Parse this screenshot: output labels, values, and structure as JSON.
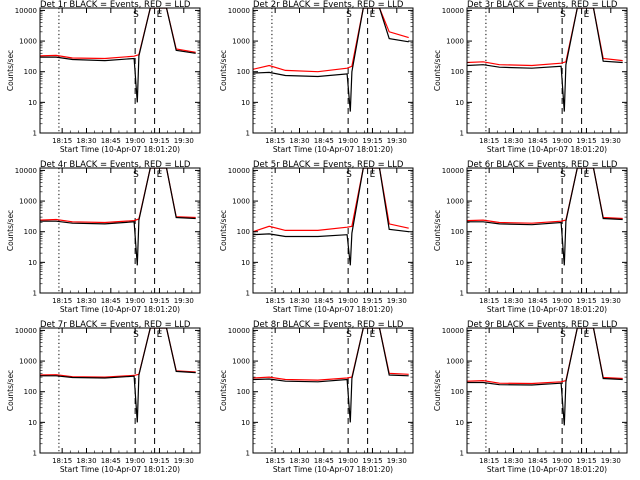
{
  "window": {
    "title_suffix": "BLACK = Events, RED = LLD"
  },
  "legend": {
    "black": "BLACK = Events",
    "red": "RED = LLD",
    "colors": {
      "events": "#000000",
      "lld": "#ff0000"
    }
  },
  "markers": {
    "start": "S",
    "end": "E"
  },
  "axes": {
    "xlabel": "Start Time (10-Apr-07 18:01:20)",
    "ylabel": "Counts/sec",
    "xticks": [
      "18:15",
      "18:30",
      "18:45",
      "19:00",
      "19:15",
      "19:30"
    ],
    "yticks": [
      "1",
      "10",
      "100",
      "1000",
      "10000"
    ]
  },
  "chart_data": [
    {
      "type": "line",
      "title": "Det 1r BLACK = Events, RED = LLD",
      "xlabel": "Start Time (10-Apr-07 18:01:20)",
      "ylabel": "Counts/sec",
      "xlim": [
        "18:01:20",
        "19:40"
      ],
      "ylim": [
        1,
        12000
      ],
      "yscale": "log",
      "series": [
        {
          "name": "Events",
          "color": "#000000",
          "values": [
            [
              0,
              300
            ],
            [
              10,
              300
            ],
            [
              20,
              250
            ],
            [
              40,
              230
            ],
            [
              58,
              270
            ],
            [
              60,
              10
            ],
            [
              61,
              330
            ],
            [
              68,
              12000
            ],
            [
              78,
              12000
            ],
            [
              84,
              500
            ],
            [
              96,
              400
            ]
          ]
        },
        {
          "name": "LLD",
          "color": "#ff0000",
          "values": [
            [
              0,
              330
            ],
            [
              10,
              340
            ],
            [
              20,
              280
            ],
            [
              40,
              270
            ],
            [
              58,
              320
            ],
            [
              61,
              360
            ],
            [
              68,
              12000
            ],
            [
              78,
              12000
            ],
            [
              84,
              550
            ],
            [
              96,
              430
            ]
          ]
        }
      ],
      "vlines": [
        "18:13",
        "19:00",
        "19:12"
      ],
      "markers": [
        "S",
        "E"
      ]
    },
    {
      "type": "line",
      "title": "Det 2r BLACK = Events, RED = LLD",
      "xlabel": "Start Time (10-Apr-07 18:01:20)",
      "ylabel": "Counts/sec",
      "xlim": [
        "18:01:20",
        "19:40"
      ],
      "ylim": [
        1,
        12000
      ],
      "yscale": "log",
      "series": [
        {
          "name": "Events",
          "color": "#000000",
          "values": [
            [
              0,
              90
            ],
            [
              10,
              95
            ],
            [
              20,
              75
            ],
            [
              40,
              70
            ],
            [
              58,
              85
            ],
            [
              60,
              5
            ],
            [
              61,
              100
            ],
            [
              68,
              12000
            ],
            [
              78,
              12000
            ],
            [
              84,
              1200
            ],
            [
              96,
              950
            ]
          ]
        },
        {
          "name": "LLD",
          "color": "#ff0000",
          "values": [
            [
              0,
              120
            ],
            [
              10,
              160
            ],
            [
              20,
              110
            ],
            [
              40,
              100
            ],
            [
              58,
              130
            ],
            [
              61,
              150
            ],
            [
              68,
              12000
            ],
            [
              78,
              12000
            ],
            [
              84,
              2000
            ],
            [
              96,
              1300
            ]
          ]
        }
      ],
      "vlines": [
        "18:13",
        "19:00",
        "19:12"
      ],
      "markers": [
        "S",
        "E"
      ]
    },
    {
      "type": "line",
      "title": "Det 3r BLACK = Events, RED = LLD",
      "xlabel": "Start Time (10-Apr-07 18:01:20)",
      "ylabel": "Counts/sec",
      "xlim": [
        "18:01:20",
        "19:40"
      ],
      "ylim": [
        1,
        12000
      ],
      "yscale": "log",
      "series": [
        {
          "name": "Events",
          "color": "#000000",
          "values": [
            [
              0,
              160
            ],
            [
              10,
              170
            ],
            [
              20,
              140
            ],
            [
              40,
              130
            ],
            [
              58,
              150
            ],
            [
              60,
              5
            ],
            [
              61,
              170
            ],
            [
              68,
              12000
            ],
            [
              78,
              12000
            ],
            [
              84,
              220
            ],
            [
              96,
              200
            ]
          ]
        },
        {
          "name": "LLD",
          "color": "#ff0000",
          "values": [
            [
              0,
              200
            ],
            [
              10,
              210
            ],
            [
              20,
              170
            ],
            [
              40,
              160
            ],
            [
              58,
              190
            ],
            [
              61,
              210
            ],
            [
              68,
              12000
            ],
            [
              78,
              12000
            ],
            [
              84,
              270
            ],
            [
              96,
              230
            ]
          ]
        }
      ],
      "vlines": [
        "18:13",
        "19:00",
        "19:12"
      ],
      "markers": [
        "S",
        "E"
      ]
    },
    {
      "type": "line",
      "title": "Det 4r BLACK = Events, RED = LLD",
      "xlabel": "Start Time (10-Apr-07 18:01:20)",
      "ylabel": "Counts/sec",
      "xlim": [
        "18:01:20",
        "19:40"
      ],
      "ylim": [
        1,
        12000
      ],
      "yscale": "log",
      "series": [
        {
          "name": "Events",
          "color": "#000000",
          "values": [
            [
              0,
              220
            ],
            [
              10,
              220
            ],
            [
              20,
              190
            ],
            [
              40,
              180
            ],
            [
              58,
              210
            ],
            [
              60,
              8
            ],
            [
              61,
              240
            ],
            [
              68,
              12000
            ],
            [
              78,
              12000
            ],
            [
              84,
              290
            ],
            [
              96,
              270
            ]
          ]
        },
        {
          "name": "LLD",
          "color": "#ff0000",
          "values": [
            [
              0,
              240
            ],
            [
              10,
              250
            ],
            [
              20,
              210
            ],
            [
              40,
              200
            ],
            [
              58,
              230
            ],
            [
              61,
              260
            ],
            [
              68,
              12000
            ],
            [
              78,
              12000
            ],
            [
              84,
              310
            ],
            [
              96,
              290
            ]
          ]
        }
      ],
      "vlines": [
        "18:13",
        "19:00",
        "19:12"
      ],
      "markers": [
        "S",
        "E"
      ]
    },
    {
      "type": "line",
      "title": "Det 5r BLACK = Events, RED = LLD",
      "xlabel": "Start Time (10-Apr-07 18:01:20)",
      "ylabel": "Counts/sec",
      "xlim": [
        "18:01:20",
        "19:40"
      ],
      "ylim": [
        1,
        12000
      ],
      "yscale": "log",
      "series": [
        {
          "name": "Events",
          "color": "#000000",
          "values": [
            [
              0,
              80
            ],
            [
              10,
              85
            ],
            [
              20,
              70
            ],
            [
              40,
              70
            ],
            [
              58,
              80
            ],
            [
              60,
              8
            ],
            [
              61,
              90
            ],
            [
              68,
              12000
            ],
            [
              78,
              12000
            ],
            [
              84,
              120
            ],
            [
              96,
              100
            ]
          ]
        },
        {
          "name": "LLD",
          "color": "#ff0000",
          "values": [
            [
              0,
              100
            ],
            [
              10,
              150
            ],
            [
              20,
              110
            ],
            [
              40,
              110
            ],
            [
              58,
              140
            ],
            [
              61,
              150
            ],
            [
              68,
              12000
            ],
            [
              78,
              12000
            ],
            [
              84,
              180
            ],
            [
              96,
              130
            ]
          ]
        }
      ],
      "vlines": [
        "18:13",
        "19:00",
        "19:12"
      ],
      "markers": [
        "S",
        "E"
      ]
    },
    {
      "type": "line",
      "title": "Det 6r BLACK = Events, RED = LLD",
      "xlabel": "Start Time (10-Apr-07 18:01:20)",
      "ylabel": "Counts/sec",
      "xlim": [
        "18:01:20",
        "19:40"
      ],
      "ylim": [
        1,
        12000
      ],
      "yscale": "log",
      "series": [
        {
          "name": "Events",
          "color": "#000000",
          "values": [
            [
              0,
              210
            ],
            [
              10,
              210
            ],
            [
              20,
              180
            ],
            [
              40,
              170
            ],
            [
              58,
              200
            ],
            [
              60,
              8
            ],
            [
              61,
              220
            ],
            [
              68,
              12000
            ],
            [
              78,
              12000
            ],
            [
              84,
              270
            ],
            [
              96,
              250
            ]
          ]
        },
        {
          "name": "LLD",
          "color": "#ff0000",
          "values": [
            [
              0,
              230
            ],
            [
              10,
              240
            ],
            [
              20,
              200
            ],
            [
              40,
              190
            ],
            [
              58,
              220
            ],
            [
              61,
              240
            ],
            [
              68,
              12000
            ],
            [
              78,
              12000
            ],
            [
              84,
              290
            ],
            [
              96,
              270
            ]
          ]
        }
      ],
      "vlines": [
        "18:13",
        "19:00",
        "19:12"
      ],
      "markers": [
        "S",
        "E"
      ]
    },
    {
      "type": "line",
      "title": "Det 7r BLACK = Events, RED = LLD",
      "xlabel": "Start Time (10-Apr-07 18:01:20)",
      "ylabel": "Counts/sec",
      "xlim": [
        "18:01:20",
        "19:40"
      ],
      "ylim": [
        1,
        12000
      ],
      "yscale": "log",
      "series": [
        {
          "name": "Events",
          "color": "#000000",
          "values": [
            [
              0,
              330
            ],
            [
              10,
              330
            ],
            [
              20,
              290
            ],
            [
              40,
              280
            ],
            [
              58,
              320
            ],
            [
              60,
              10
            ],
            [
              61,
              350
            ],
            [
              68,
              12000
            ],
            [
              78,
              12000
            ],
            [
              84,
              460
            ],
            [
              96,
              420
            ]
          ]
        },
        {
          "name": "LLD",
          "color": "#ff0000",
          "values": [
            [
              0,
              350
            ],
            [
              10,
              360
            ],
            [
              20,
              310
            ],
            [
              40,
              300
            ],
            [
              58,
              340
            ],
            [
              61,
              370
            ],
            [
              68,
              12000
            ],
            [
              78,
              12000
            ],
            [
              84,
              480
            ],
            [
              96,
              440
            ]
          ]
        }
      ],
      "vlines": [
        "18:13",
        "19:00",
        "19:12"
      ],
      "markers": [
        "S",
        "E"
      ]
    },
    {
      "type": "line",
      "title": "Det 8r BLACK = Events, RED = LLD",
      "xlabel": "Start Time (10-Apr-07 18:01:20)",
      "ylabel": "Counts/sec",
      "xlim": [
        "18:01:20",
        "19:40"
      ],
      "ylim": [
        1,
        12000
      ],
      "yscale": "log",
      "series": [
        {
          "name": "Events",
          "color": "#000000",
          "values": [
            [
              0,
              250
            ],
            [
              10,
              260
            ],
            [
              20,
              220
            ],
            [
              40,
              210
            ],
            [
              58,
              250
            ],
            [
              60,
              10
            ],
            [
              61,
              270
            ],
            [
              68,
              12000
            ],
            [
              78,
              12000
            ],
            [
              84,
              350
            ],
            [
              96,
              330
            ]
          ]
        },
        {
          "name": "LLD",
          "color": "#ff0000",
          "values": [
            [
              0,
              280
            ],
            [
              10,
              300
            ],
            [
              20,
              250
            ],
            [
              40,
              240
            ],
            [
              58,
              280
            ],
            [
              61,
              300
            ],
            [
              68,
              12000
            ],
            [
              78,
              12000
            ],
            [
              84,
              400
            ],
            [
              96,
              370
            ]
          ]
        }
      ],
      "vlines": [
        "18:13",
        "19:00",
        "19:12"
      ],
      "markers": [
        "S",
        "E"
      ]
    },
    {
      "type": "line",
      "title": "Det 9r BLACK = Events, RED = LLD",
      "xlabel": "Start Time (10-Apr-07 18:01:20)",
      "ylabel": "Counts/sec",
      "xlim": [
        "18:01:20",
        "19:40"
      ],
      "ylim": [
        1,
        12000
      ],
      "yscale": "log",
      "series": [
        {
          "name": "Events",
          "color": "#000000",
          "values": [
            [
              0,
              200
            ],
            [
              10,
              200
            ],
            [
              20,
              170
            ],
            [
              40,
              165
            ],
            [
              58,
              190
            ],
            [
              60,
              8
            ],
            [
              61,
              210
            ],
            [
              68,
              12000
            ],
            [
              78,
              12000
            ],
            [
              84,
              270
            ],
            [
              96,
              250
            ]
          ]
        },
        {
          "name": "LLD",
          "color": "#ff0000",
          "values": [
            [
              0,
              220
            ],
            [
              10,
              230
            ],
            [
              20,
              190
            ],
            [
              40,
              185
            ],
            [
              58,
              210
            ],
            [
              61,
              230
            ],
            [
              68,
              12000
            ],
            [
              78,
              12000
            ],
            [
              84,
              290
            ],
            [
              96,
              270
            ]
          ]
        }
      ],
      "vlines": [
        "18:13",
        "19:00",
        "19:12"
      ],
      "markers": [
        "S",
        "E"
      ]
    }
  ]
}
